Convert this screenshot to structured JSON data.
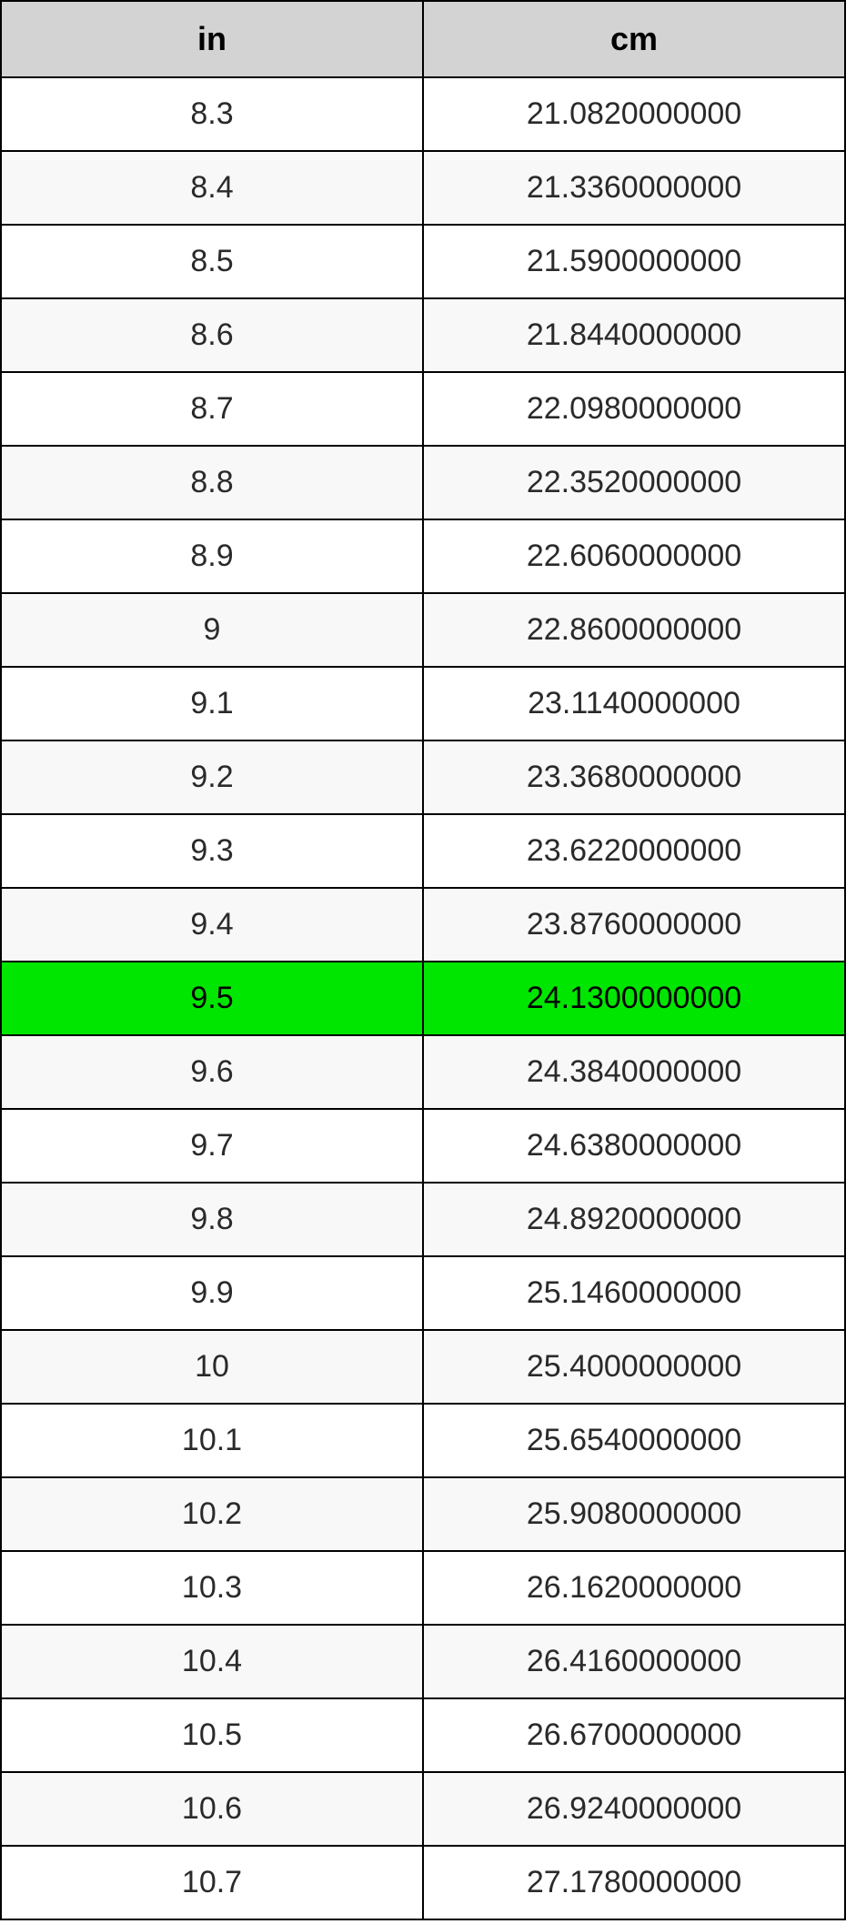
{
  "table": {
    "header_bg": "#d3d3d3",
    "header_text_color": "#000000",
    "row_alt_bg_even": "#f8f8f8",
    "row_alt_bg_odd": "#ffffff",
    "highlight_bg": "#00e600",
    "highlight_text_color": "#000000",
    "text_color": "#2a2a2a",
    "border_color": "#000000",
    "columns": [
      "in",
      "cm"
    ],
    "highlight_index": 12,
    "rows": [
      [
        "8.3",
        "21.0820000000"
      ],
      [
        "8.4",
        "21.3360000000"
      ],
      [
        "8.5",
        "21.5900000000"
      ],
      [
        "8.6",
        "21.8440000000"
      ],
      [
        "8.7",
        "22.0980000000"
      ],
      [
        "8.8",
        "22.3520000000"
      ],
      [
        "8.9",
        "22.6060000000"
      ],
      [
        "9",
        "22.8600000000"
      ],
      [
        "9.1",
        "23.1140000000"
      ],
      [
        "9.2",
        "23.3680000000"
      ],
      [
        "9.3",
        "23.6220000000"
      ],
      [
        "9.4",
        "23.8760000000"
      ],
      [
        "9.5",
        "24.1300000000"
      ],
      [
        "9.6",
        "24.3840000000"
      ],
      [
        "9.7",
        "24.6380000000"
      ],
      [
        "9.8",
        "24.8920000000"
      ],
      [
        "9.9",
        "25.1460000000"
      ],
      [
        "10",
        "25.4000000000"
      ],
      [
        "10.1",
        "25.6540000000"
      ],
      [
        "10.2",
        "25.9080000000"
      ],
      [
        "10.3",
        "26.1620000000"
      ],
      [
        "10.4",
        "26.4160000000"
      ],
      [
        "10.5",
        "26.6700000000"
      ],
      [
        "10.6",
        "26.9240000000"
      ],
      [
        "10.7",
        "27.1780000000"
      ]
    ]
  }
}
